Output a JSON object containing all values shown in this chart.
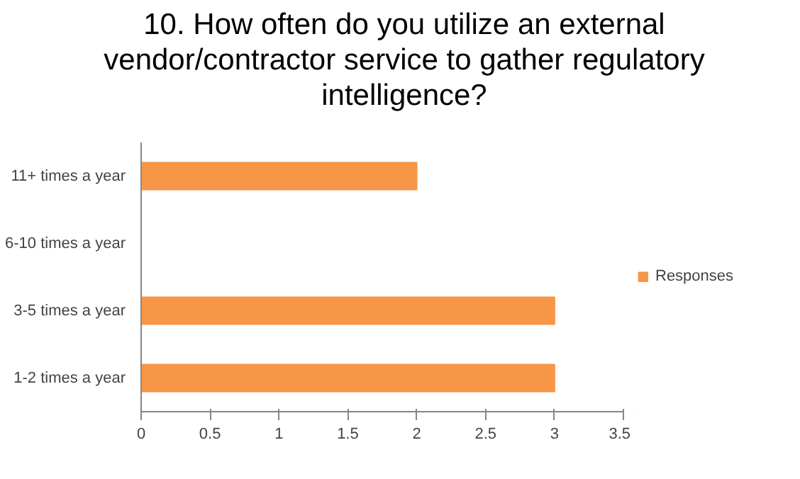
{
  "chart_data": {
    "type": "bar",
    "orientation": "horizontal",
    "title": "10. How often do you utilize an external vendor/contractor service to gather regulatory intelligence?",
    "categories": [
      "11+ times a year",
      "6-10 times a year",
      "3-5 times a year",
      "1-2 times a year"
    ],
    "series": [
      {
        "name": "Responses",
        "color": "#f79646",
        "values": [
          2,
          0,
          3,
          3
        ]
      }
    ],
    "xlim": [
      0,
      3.5
    ],
    "xticks": [
      0,
      0.5,
      1,
      1.5,
      2,
      2.5,
      3,
      3.5
    ],
    "grid": false,
    "legend": "right"
  }
}
